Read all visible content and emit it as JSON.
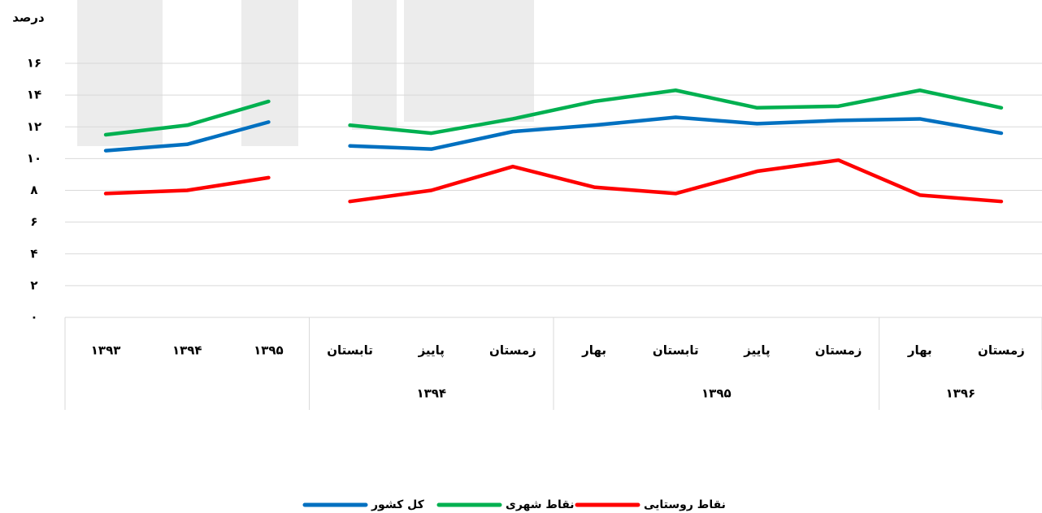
{
  "chart_data": {
    "type": "line",
    "y_label": "درصد",
    "categories": [
      "۱۳۹۳",
      "۱۳۹۴",
      "۱۳۹۵",
      "تابستان",
      "پاییز",
      "زمستان",
      "بهار",
      "تابستان",
      "پاییز",
      "زمستان",
      "بهار",
      "زمستان"
    ],
    "groups": [
      {
        "label": null,
        "span": 3,
        "join_previous": false
      },
      {
        "label": "۱۳۹۴",
        "span": 3,
        "join_previous": false
      },
      {
        "label": "۱۳۹۵",
        "span": 4,
        "join_previous": true
      },
      {
        "label": "۱۳۹۶",
        "span": 2,
        "join_previous": true
      }
    ],
    "series": [
      {
        "name": "کل کشور",
        "color": "#0070c0",
        "values": [
          10.5,
          10.9,
          12.3,
          10.8,
          10.6,
          11.7,
          12.1,
          12.6,
          12.2,
          12.4,
          12.5,
          11.6
        ]
      },
      {
        "name": "نقاط شهری",
        "color": "#00b050",
        "values": [
          11.5,
          12.1,
          13.6,
          12.1,
          11.6,
          12.5,
          13.6,
          14.3,
          13.2,
          13.3,
          14.3,
          13.2
        ]
      },
      {
        "name": "نقاط روستایی",
        "color": "#ff0000",
        "values": [
          7.8,
          8.0,
          8.8,
          7.3,
          8.0,
          9.5,
          8.2,
          7.8,
          9.2,
          9.9,
          7.7,
          7.3
        ]
      }
    ],
    "ylim": [
      0,
      16
    ],
    "yticks": [
      {
        "value": 0,
        "label": "۰"
      },
      {
        "value": 2,
        "label": "۲"
      },
      {
        "value": 4,
        "label": "۴"
      },
      {
        "value": 6,
        "label": "۶"
      },
      {
        "value": 8,
        "label": "۸"
      },
      {
        "value": 10,
        "label": "۱۰"
      },
      {
        "value": 12,
        "label": "۱۲"
      },
      {
        "value": 14,
        "label": "۱۴"
      },
      {
        "value": 16,
        "label": "۱۶"
      }
    ],
    "grid": true,
    "legend": "bottom"
  }
}
